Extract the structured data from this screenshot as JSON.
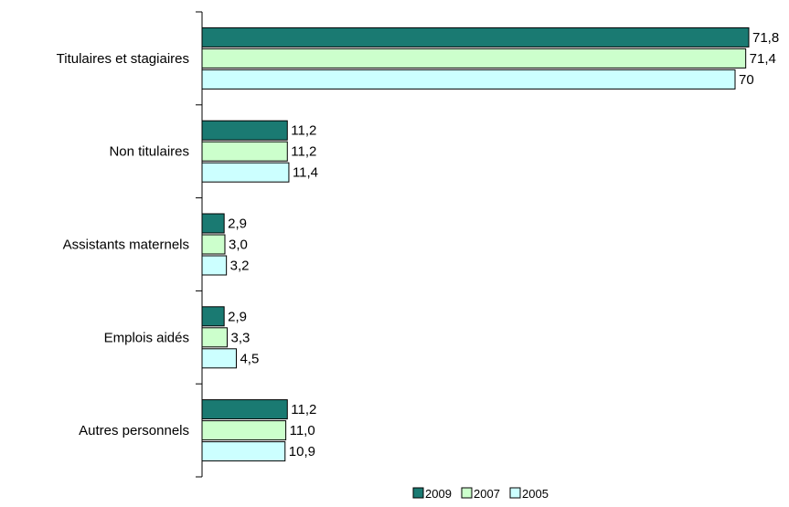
{
  "chart_data": {
    "type": "bar",
    "orientation": "horizontal",
    "title": "",
    "xlabel": "",
    "ylabel": "",
    "categories": [
      "Titulaires et stagiaires",
      "Non titulaires",
      "Assistants maternels",
      "Emplois aidés",
      "Autres personnels"
    ],
    "series": [
      {
        "name": "2009",
        "color": "#1a7a72",
        "values": [
          71.8,
          11.2,
          2.9,
          2.9,
          11.2
        ],
        "labels": [
          "71,8",
          "11,2",
          "2,9",
          "2,9",
          "11,2"
        ]
      },
      {
        "name": "2007",
        "color": "#ccffcc",
        "values": [
          71.4,
          11.2,
          3.0,
          3.3,
          11.0
        ],
        "labels": [
          "71,4",
          "11,2",
          "3,0",
          "3,3",
          "11,0"
        ]
      },
      {
        "name": "2005",
        "color": "#ccffff",
        "values": [
          70,
          11.4,
          3.2,
          4.5,
          10.9
        ],
        "labels": [
          "70",
          "11,4",
          "3,2",
          "4,5",
          "10,9"
        ]
      }
    ],
    "xlim": [
      0,
      72
    ],
    "grid": false,
    "legend_position": "bottom"
  }
}
